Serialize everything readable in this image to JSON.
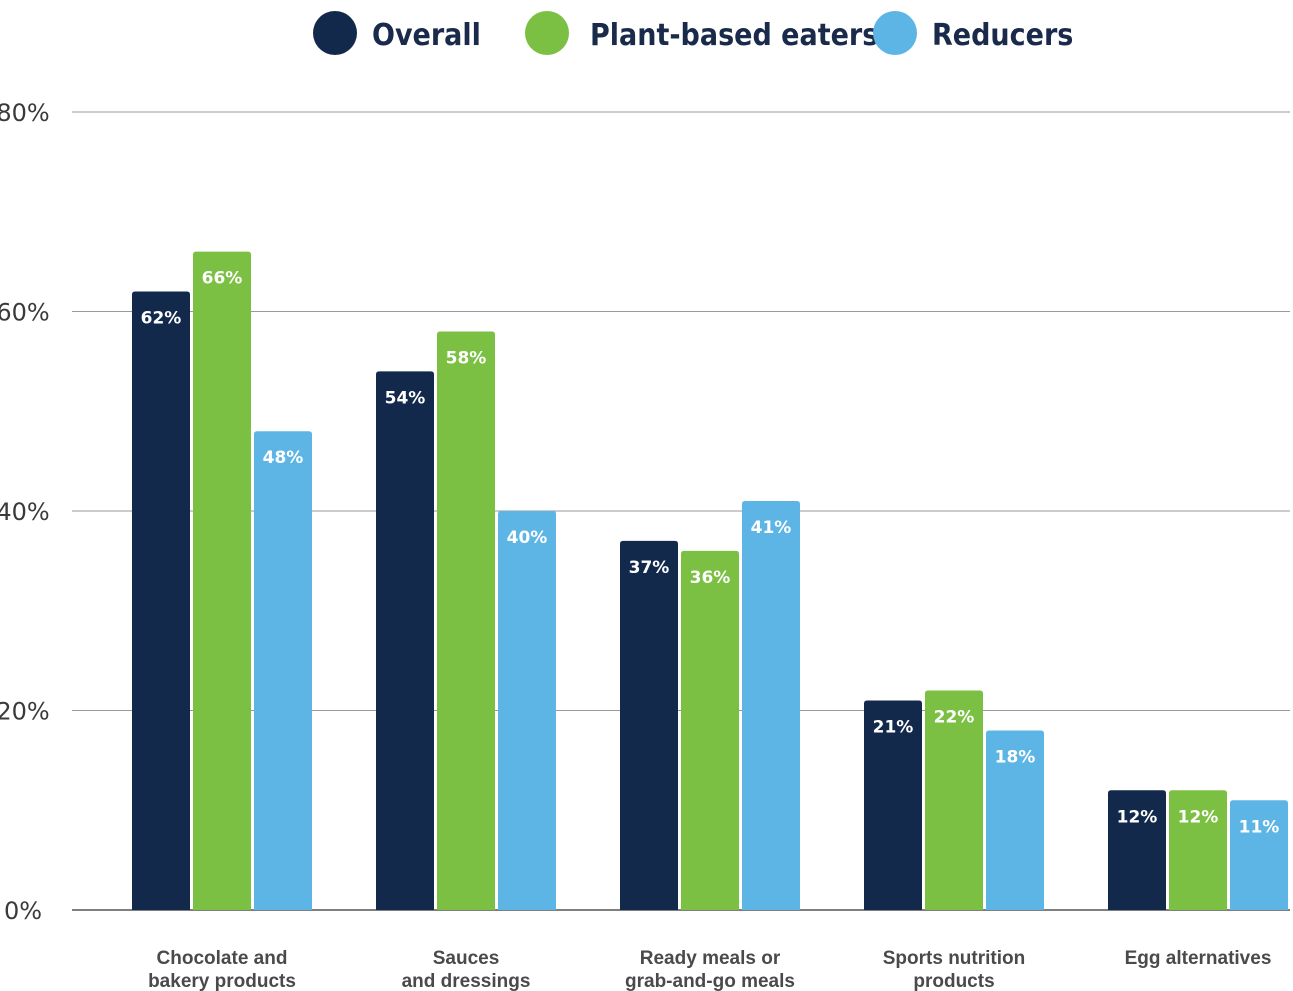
{
  "chart_data": {
    "type": "bar",
    "categories": [
      [
        "Chocolate and",
        "bakery products"
      ],
      [
        "Sauces",
        "and dressings"
      ],
      [
        "Ready meals or",
        "grab-and-go meals"
      ],
      [
        "Sports nutrition",
        "products"
      ],
      [
        "Egg alternatives"
      ]
    ],
    "series": [
      {
        "name": "Overall",
        "color": "#13294b",
        "values": [
          62,
          54,
          37,
          21,
          12
        ],
        "labels": [
          "62%",
          "54%",
          "37%",
          "21%",
          "12%"
        ]
      },
      {
        "name": "Plant-based eaters",
        "color": "#7bc043",
        "values": [
          66,
          58,
          36,
          22,
          12
        ],
        "labels": [
          "66%",
          "58%",
          "36%",
          "22%",
          "12%"
        ]
      },
      {
        "name": "Reducers",
        "color": "#5db5e6",
        "values": [
          48,
          40,
          41,
          18,
          11
        ],
        "labels": [
          "48%",
          "40%",
          "41%",
          "18%",
          "11%"
        ]
      }
    ],
    "y_ticks": [
      0,
      20,
      40,
      60,
      80
    ],
    "y_tick_labels": [
      "0%",
      "20%",
      "40%",
      "60%",
      "80%"
    ],
    "ylim": [
      0,
      80
    ],
    "grid": true,
    "legend": "top-center"
  }
}
